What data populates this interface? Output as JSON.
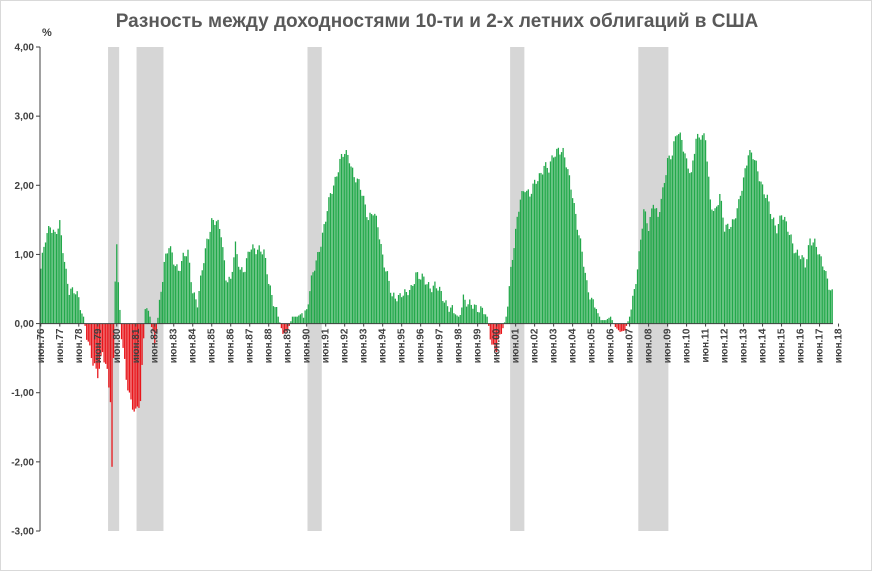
{
  "chart_data": {
    "type": "bar",
    "title": "Разность между доходностями 10-ти и 2-х летних облигаций в США",
    "ylabel": "%",
    "ylim": [
      -3,
      4
    ],
    "yticks": [
      "4,00",
      "3,00",
      "2,00",
      "1,00",
      "0,00",
      "-1,00",
      "-2,00",
      "-3,00"
    ],
    "grid": false,
    "legend": "none",
    "colors": {
      "positive": "#22a84a",
      "negative": "#e8161b",
      "recession": "#d6d6d6",
      "axis": "#404040"
    },
    "x_tick_labels": [
      "июн.76",
      "июн.77",
      "июн.78",
      "июн.79",
      "июн.80",
      "июн.81",
      "июн.82",
      "июн.83",
      "июн.84",
      "июн.85",
      "июн.86",
      "июн.87",
      "июн.88",
      "июн.89",
      "июн.90",
      "июн.91",
      "июн.92",
      "июн.93",
      "июн.94",
      "июн.95",
      "июн.96",
      "июн.97",
      "июн.98",
      "июн.99",
      "июн.00",
      "июн.01",
      "июн.02",
      "июн.03",
      "июн.04",
      "июн.05",
      "июн.06",
      "июн.07",
      "июн.08",
      "июн.09",
      "июн.10",
      "июн.11",
      "июн.12",
      "июн.13",
      "июн.14",
      "июн.15",
      "июн.16",
      "июн.17",
      "июн.18"
    ],
    "x_start": "1976-06",
    "x_end": "2018-02",
    "recessions": [
      [
        "1980-01",
        "1980-07"
      ],
      [
        "1981-07",
        "1982-11"
      ],
      [
        "1990-07",
        "1991-03"
      ],
      [
        "2001-03",
        "2001-11"
      ],
      [
        "2007-12",
        "2009-06"
      ]
    ],
    "anchors": [
      [
        "1976-06",
        0.8
      ],
      [
        "1976-09",
        1.2
      ],
      [
        "1976-12",
        1.45
      ],
      [
        "1977-03",
        1.3
      ],
      [
        "1977-06",
        1.4
      ],
      [
        "1977-09",
        0.9
      ],
      [
        "1977-12",
        0.5
      ],
      [
        "1978-03",
        0.45
      ],
      [
        "1978-06",
        0.35
      ],
      [
        "1978-09",
        0.1
      ],
      [
        "1978-12",
        -0.3
      ],
      [
        "1979-03",
        -0.6
      ],
      [
        "1979-06",
        -0.7
      ],
      [
        "1979-09",
        -0.4
      ],
      [
        "1979-12",
        -0.75
      ],
      [
        "1980-02",
        -1.1
      ],
      [
        "1980-03",
        -2.1
      ],
      [
        "1980-04",
        -0.5
      ],
      [
        "1980-05",
        0.7
      ],
      [
        "1980-06",
        1.2
      ],
      [
        "1980-07",
        0.55
      ],
      [
        "1980-09",
        -0.2
      ],
      [
        "1980-12",
        -0.8
      ],
      [
        "1981-03",
        -1.1
      ],
      [
        "1981-06",
        -1.3
      ],
      [
        "1981-09",
        -1.15
      ],
      [
        "1981-12",
        0.3
      ],
      [
        "1982-03",
        0.1
      ],
      [
        "1982-06",
        -0.35
      ],
      [
        "1982-09",
        0.3
      ],
      [
        "1982-12",
        0.9
      ],
      [
        "1983-03",
        1.1
      ],
      [
        "1983-06",
        0.9
      ],
      [
        "1983-09",
        0.8
      ],
      [
        "1983-12",
        0.95
      ],
      [
        "1984-03",
        1.0
      ],
      [
        "1984-06",
        0.5
      ],
      [
        "1984-09",
        0.3
      ],
      [
        "1984-12",
        0.75
      ],
      [
        "1985-03",
        1.2
      ],
      [
        "1985-06",
        1.5
      ],
      [
        "1985-09",
        1.45
      ],
      [
        "1985-12",
        1.3
      ],
      [
        "1986-03",
        0.7
      ],
      [
        "1986-06",
        0.6
      ],
      [
        "1986-09",
        1.1
      ],
      [
        "1986-12",
        0.8
      ],
      [
        "1987-03",
        0.8
      ],
      [
        "1987-06",
        1.05
      ],
      [
        "1987-09",
        1.1
      ],
      [
        "1987-12",
        1.1
      ],
      [
        "1988-03",
        1.0
      ],
      [
        "1988-06",
        0.6
      ],
      [
        "1988-09",
        0.35
      ],
      [
        "1988-12",
        0.1
      ],
      [
        "1989-03",
        -0.15
      ],
      [
        "1989-06",
        -0.1
      ],
      [
        "1989-09",
        0.1
      ],
      [
        "1989-12",
        0.1
      ],
      [
        "1990-03",
        0.15
      ],
      [
        "1990-06",
        0.2
      ],
      [
        "1990-09",
        0.6
      ],
      [
        "1990-12",
        0.9
      ],
      [
        "1991-03",
        1.2
      ],
      [
        "1991-06",
        1.5
      ],
      [
        "1991-09",
        1.85
      ],
      [
        "1991-12",
        2.1
      ],
      [
        "1992-03",
        2.35
      ],
      [
        "1992-06",
        2.45
      ],
      [
        "1992-09",
        2.4
      ],
      [
        "1992-12",
        2.15
      ],
      [
        "1993-03",
        2.0
      ],
      [
        "1993-06",
        1.8
      ],
      [
        "1993-09",
        1.55
      ],
      [
        "1993-12",
        1.6
      ],
      [
        "1994-03",
        1.4
      ],
      [
        "1994-06",
        1.0
      ],
      [
        "1994-09",
        0.7
      ],
      [
        "1994-12",
        0.35
      ],
      [
        "1995-03",
        0.4
      ],
      [
        "1995-06",
        0.45
      ],
      [
        "1995-09",
        0.4
      ],
      [
        "1995-12",
        0.5
      ],
      [
        "1996-03",
        0.75
      ],
      [
        "1996-06",
        0.65
      ],
      [
        "1996-09",
        0.6
      ],
      [
        "1996-12",
        0.55
      ],
      [
        "1997-03",
        0.55
      ],
      [
        "1997-06",
        0.45
      ],
      [
        "1997-09",
        0.35
      ],
      [
        "1997-12",
        0.25
      ],
      [
        "1998-03",
        0.15
      ],
      [
        "1998-06",
        0.1
      ],
      [
        "1998-09",
        0.4
      ],
      [
        "1998-12",
        0.25
      ],
      [
        "1999-03",
        0.25
      ],
      [
        "1999-06",
        0.25
      ],
      [
        "1999-09",
        0.2
      ],
      [
        "1999-12",
        0.1
      ],
      [
        "2000-03",
        -0.3
      ],
      [
        "2000-06",
        -0.35
      ],
      [
        "2000-09",
        -0.15
      ],
      [
        "2000-12",
        0.1
      ],
      [
        "2001-03",
        0.8
      ],
      [
        "2001-06",
        1.3
      ],
      [
        "2001-09",
        1.8
      ],
      [
        "2001-12",
        2.0
      ],
      [
        "2002-03",
        1.85
      ],
      [
        "2002-06",
        2.0
      ],
      [
        "2002-09",
        2.15
      ],
      [
        "2002-12",
        2.3
      ],
      [
        "2003-03",
        2.2
      ],
      [
        "2003-06",
        2.45
      ],
      [
        "2003-09",
        2.55
      ],
      [
        "2003-12",
        2.45
      ],
      [
        "2004-03",
        2.2
      ],
      [
        "2004-06",
        1.9
      ],
      [
        "2004-09",
        1.4
      ],
      [
        "2004-12",
        1.0
      ],
      [
        "2005-03",
        0.6
      ],
      [
        "2005-06",
        0.35
      ],
      [
        "2005-09",
        0.2
      ],
      [
        "2005-12",
        0.05
      ],
      [
        "2006-03",
        0.05
      ],
      [
        "2006-06",
        0.1
      ],
      [
        "2006-09",
        -0.05
      ],
      [
        "2006-12",
        -0.12
      ],
      [
        "2007-03",
        -0.1
      ],
      [
        "2007-06",
        0.1
      ],
      [
        "2007-09",
        0.5
      ],
      [
        "2007-12",
        1.0
      ],
      [
        "2008-03",
        1.6
      ],
      [
        "2008-06",
        1.4
      ],
      [
        "2008-09",
        1.8
      ],
      [
        "2008-12",
        1.5
      ],
      [
        "2009-03",
        1.9
      ],
      [
        "2009-06",
        2.4
      ],
      [
        "2009-09",
        2.45
      ],
      [
        "2009-12",
        2.75
      ],
      [
        "2010-03",
        2.7
      ],
      [
        "2010-06",
        2.35
      ],
      [
        "2010-09",
        2.1
      ],
      [
        "2010-12",
        2.7
      ],
      [
        "2011-03",
        2.75
      ],
      [
        "2011-06",
        2.65
      ],
      [
        "2011-09",
        1.75
      ],
      [
        "2011-12",
        1.65
      ],
      [
        "2012-03",
        1.85
      ],
      [
        "2012-06",
        1.35
      ],
      [
        "2012-09",
        1.45
      ],
      [
        "2012-12",
        1.5
      ],
      [
        "2013-03",
        1.7
      ],
      [
        "2013-06",
        2.1
      ],
      [
        "2013-09",
        2.5
      ],
      [
        "2013-12",
        2.4
      ],
      [
        "2014-03",
        2.2
      ],
      [
        "2014-06",
        2.0
      ],
      [
        "2014-09",
        1.8
      ],
      [
        "2014-12",
        1.5
      ],
      [
        "2015-03",
        1.4
      ],
      [
        "2015-06",
        1.6
      ],
      [
        "2015-09",
        1.4
      ],
      [
        "2015-12",
        1.25
      ],
      [
        "2016-03",
        1.05
      ],
      [
        "2016-06",
        0.95
      ],
      [
        "2016-09",
        0.85
      ],
      [
        "2016-12",
        1.25
      ],
      [
        "2017-03",
        1.15
      ],
      [
        "2017-06",
        0.95
      ],
      [
        "2017-09",
        0.85
      ],
      [
        "2017-12",
        0.55
      ],
      [
        "2018-02",
        0.4
      ]
    ]
  }
}
